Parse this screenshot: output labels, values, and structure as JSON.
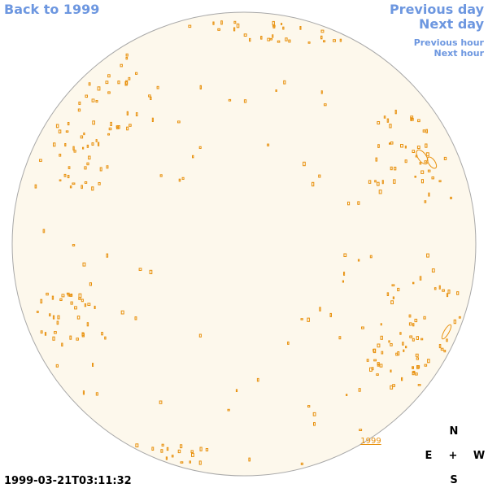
{
  "navigation": {
    "back": "Back to 1999",
    "previous_day": "Previous day",
    "next_day": "Next day",
    "previous_hour": "Previous hour",
    "next_hour": "Next hour"
  },
  "year_link": "1999",
  "compass": {
    "north": "N",
    "east": "E",
    "center": "+",
    "west": "W",
    "south": "S"
  },
  "timestamp": "1999-03-21T03:11:32"
}
